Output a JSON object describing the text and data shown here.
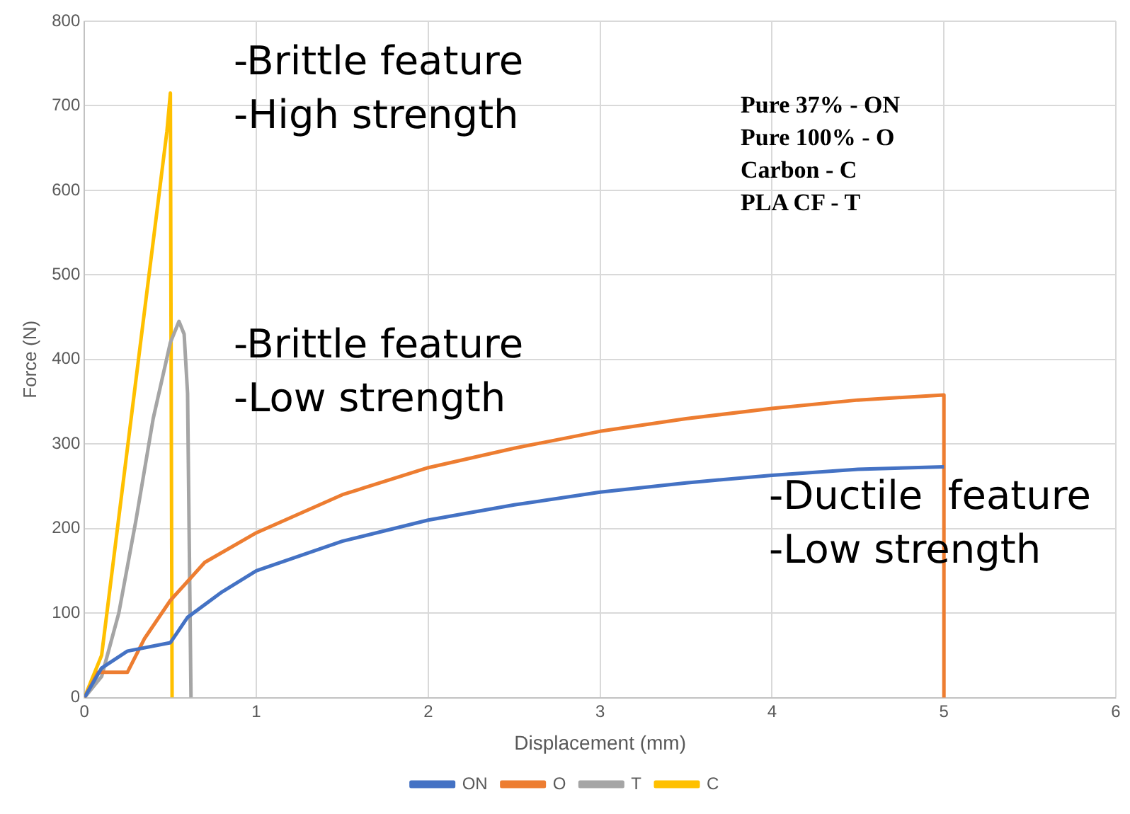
{
  "chart_data": {
    "type": "line",
    "xlabel": "Displacement (mm)",
    "ylabel": "Force (N)",
    "xlim": [
      0,
      6
    ],
    "xticks": [
      0,
      1,
      2,
      3,
      4,
      5,
      6
    ],
    "ylim": [
      0,
      800
    ],
    "yticks": [
      0,
      100,
      200,
      300,
      400,
      500,
      600,
      700,
      800
    ],
    "grid": true,
    "legend": "bottom",
    "marker": "none",
    "line_style": "solid",
    "annotations": [
      "-Brittle feature\n-High strength",
      "-Brittle feature\n-Low strength",
      "-Ductile  feature\n-Low strength",
      "Pure 37% - ON\nPure 100% - O\nCarbon - C\nPLA CF - T"
    ],
    "series": [
      {
        "name": "ON",
        "color": "#4472c4",
        "x": [
          0,
          0.1,
          0.25,
          0.5,
          0.55,
          0.6,
          0.8,
          1,
          1.5,
          2,
          2.5,
          3,
          3.5,
          4,
          4.5,
          5
        ],
        "values": [
          0,
          35,
          55,
          65,
          80,
          95,
          125,
          150,
          185,
          210,
          228,
          243,
          254,
          263,
          270,
          273
        ]
      },
      {
        "name": "O",
        "color": "#ed7d31",
        "x": [
          0,
          0.08,
          0.25,
          0.35,
          0.5,
          0.7,
          1,
          1.5,
          2,
          2.5,
          3,
          3.5,
          4,
          4.5,
          5,
          5
        ],
        "values": [
          0,
          30,
          30,
          70,
          115,
          160,
          195,
          240,
          272,
          295,
          315,
          330,
          342,
          352,
          358,
          0
        ]
      },
      {
        "name": "T",
        "color": "#a5a5a5",
        "x": [
          0,
          0.1,
          0.2,
          0.3,
          0.4,
          0.5,
          0.55,
          0.58,
          0.6,
          0.62
        ],
        "values": [
          0,
          25,
          100,
          210,
          330,
          420,
          445,
          430,
          360,
          0
        ]
      },
      {
        "name": "C",
        "color": "#ffc000",
        "x": [
          0,
          0.1,
          0.48,
          0.5,
          0.51
        ],
        "values": [
          0,
          50,
          670,
          715,
          0
        ]
      }
    ]
  }
}
